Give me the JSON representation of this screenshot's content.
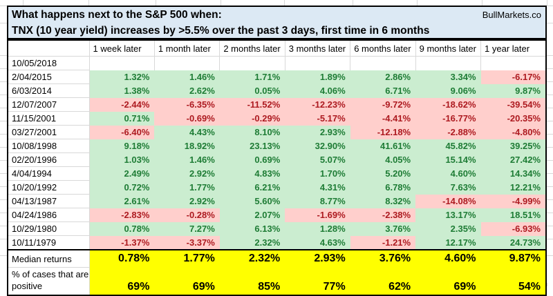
{
  "header": {
    "title_line1": "What happens next to the S&P 500 when:",
    "title_line2": "TNX (10 year yield) increases by >5.5% over the past 3 days, first time in 6 months",
    "brand": "BullMarkets.co"
  },
  "table": {
    "columns": [
      "1 week later",
      "1 month later",
      "2 months later",
      "3 months later",
      "6 months later",
      "9 months later",
      "1 year later"
    ],
    "signal_row": {
      "date": "10/05/2018"
    },
    "rows": [
      {
        "date": "2/04/2015",
        "values": [
          "1.32%",
          "1.46%",
          "1.71%",
          "1.89%",
          "2.86%",
          "3.34%",
          "-6.17%"
        ]
      },
      {
        "date": "6/03/2014",
        "values": [
          "1.38%",
          "2.62%",
          "0.05%",
          "4.06%",
          "6.71%",
          "9.06%",
          "9.87%"
        ]
      },
      {
        "date": "12/07/2007",
        "values": [
          "-2.44%",
          "-6.35%",
          "-11.52%",
          "-12.23%",
          "-9.72%",
          "-18.62%",
          "-39.54%"
        ]
      },
      {
        "date": "11/15/2001",
        "values": [
          "0.71%",
          "-0.69%",
          "-0.29%",
          "-5.17%",
          "-4.41%",
          "-16.77%",
          "-20.35%"
        ]
      },
      {
        "date": "03/27/2001",
        "values": [
          "-6.40%",
          "4.43%",
          "8.10%",
          "2.93%",
          "-12.18%",
          "-2.88%",
          "-4.80%"
        ]
      },
      {
        "date": "10/08/1998",
        "values": [
          "9.18%",
          "18.92%",
          "23.13%",
          "32.90%",
          "41.61%",
          "45.82%",
          "39.25%"
        ]
      },
      {
        "date": "02/20/1996",
        "values": [
          "1.03%",
          "1.46%",
          "0.69%",
          "5.07%",
          "4.05%",
          "15.14%",
          "27.42%"
        ]
      },
      {
        "date": "4/04/1994",
        "values": [
          "2.49%",
          "2.92%",
          "4.83%",
          "1.70%",
          "5.20%",
          "4.60%",
          "14.34%"
        ]
      },
      {
        "date": "10/20/1992",
        "values": [
          "0.72%",
          "1.77%",
          "6.21%",
          "4.31%",
          "6.78%",
          "7.63%",
          "12.21%"
        ]
      },
      {
        "date": "04/13/1987",
        "values": [
          "2.61%",
          "2.92%",
          "5.60%",
          "8.77%",
          "8.32%",
          "-14.08%",
          "-4.99%"
        ]
      },
      {
        "date": "04/24/1986",
        "values": [
          "-2.83%",
          "-0.28%",
          "2.07%",
          "-1.69%",
          "-2.38%",
          "13.17%",
          "18.51%"
        ]
      },
      {
        "date": "10/29/1980",
        "values": [
          "0.78%",
          "7.27%",
          "6.13%",
          "1.28%",
          "3.76%",
          "2.35%",
          "-6.93%"
        ]
      },
      {
        "date": "10/11/1979",
        "values": [
          "-1.37%",
          "-3.37%",
          "2.32%",
          "4.63%",
          "-1.21%",
          "12.17%",
          "24.73%"
        ]
      }
    ],
    "median": {
      "label": "Median returns",
      "values": [
        "0.78%",
        "1.77%",
        "2.32%",
        "2.93%",
        "3.76%",
        "4.60%",
        "9.87%"
      ]
    },
    "pct_positive": {
      "label": "% of cases that are positive",
      "values": [
        "69%",
        "69%",
        "85%",
        "77%",
        "62%",
        "69%",
        "54%"
      ]
    }
  },
  "colors": {
    "positive_bg": "#cbedd0",
    "positive_text": "#1e7c35",
    "negative_bg": "#ffcfcc",
    "negative_text": "#ad1a20",
    "highlight_bg": "#ffff00",
    "banner_bg": "#dce9f4"
  }
}
